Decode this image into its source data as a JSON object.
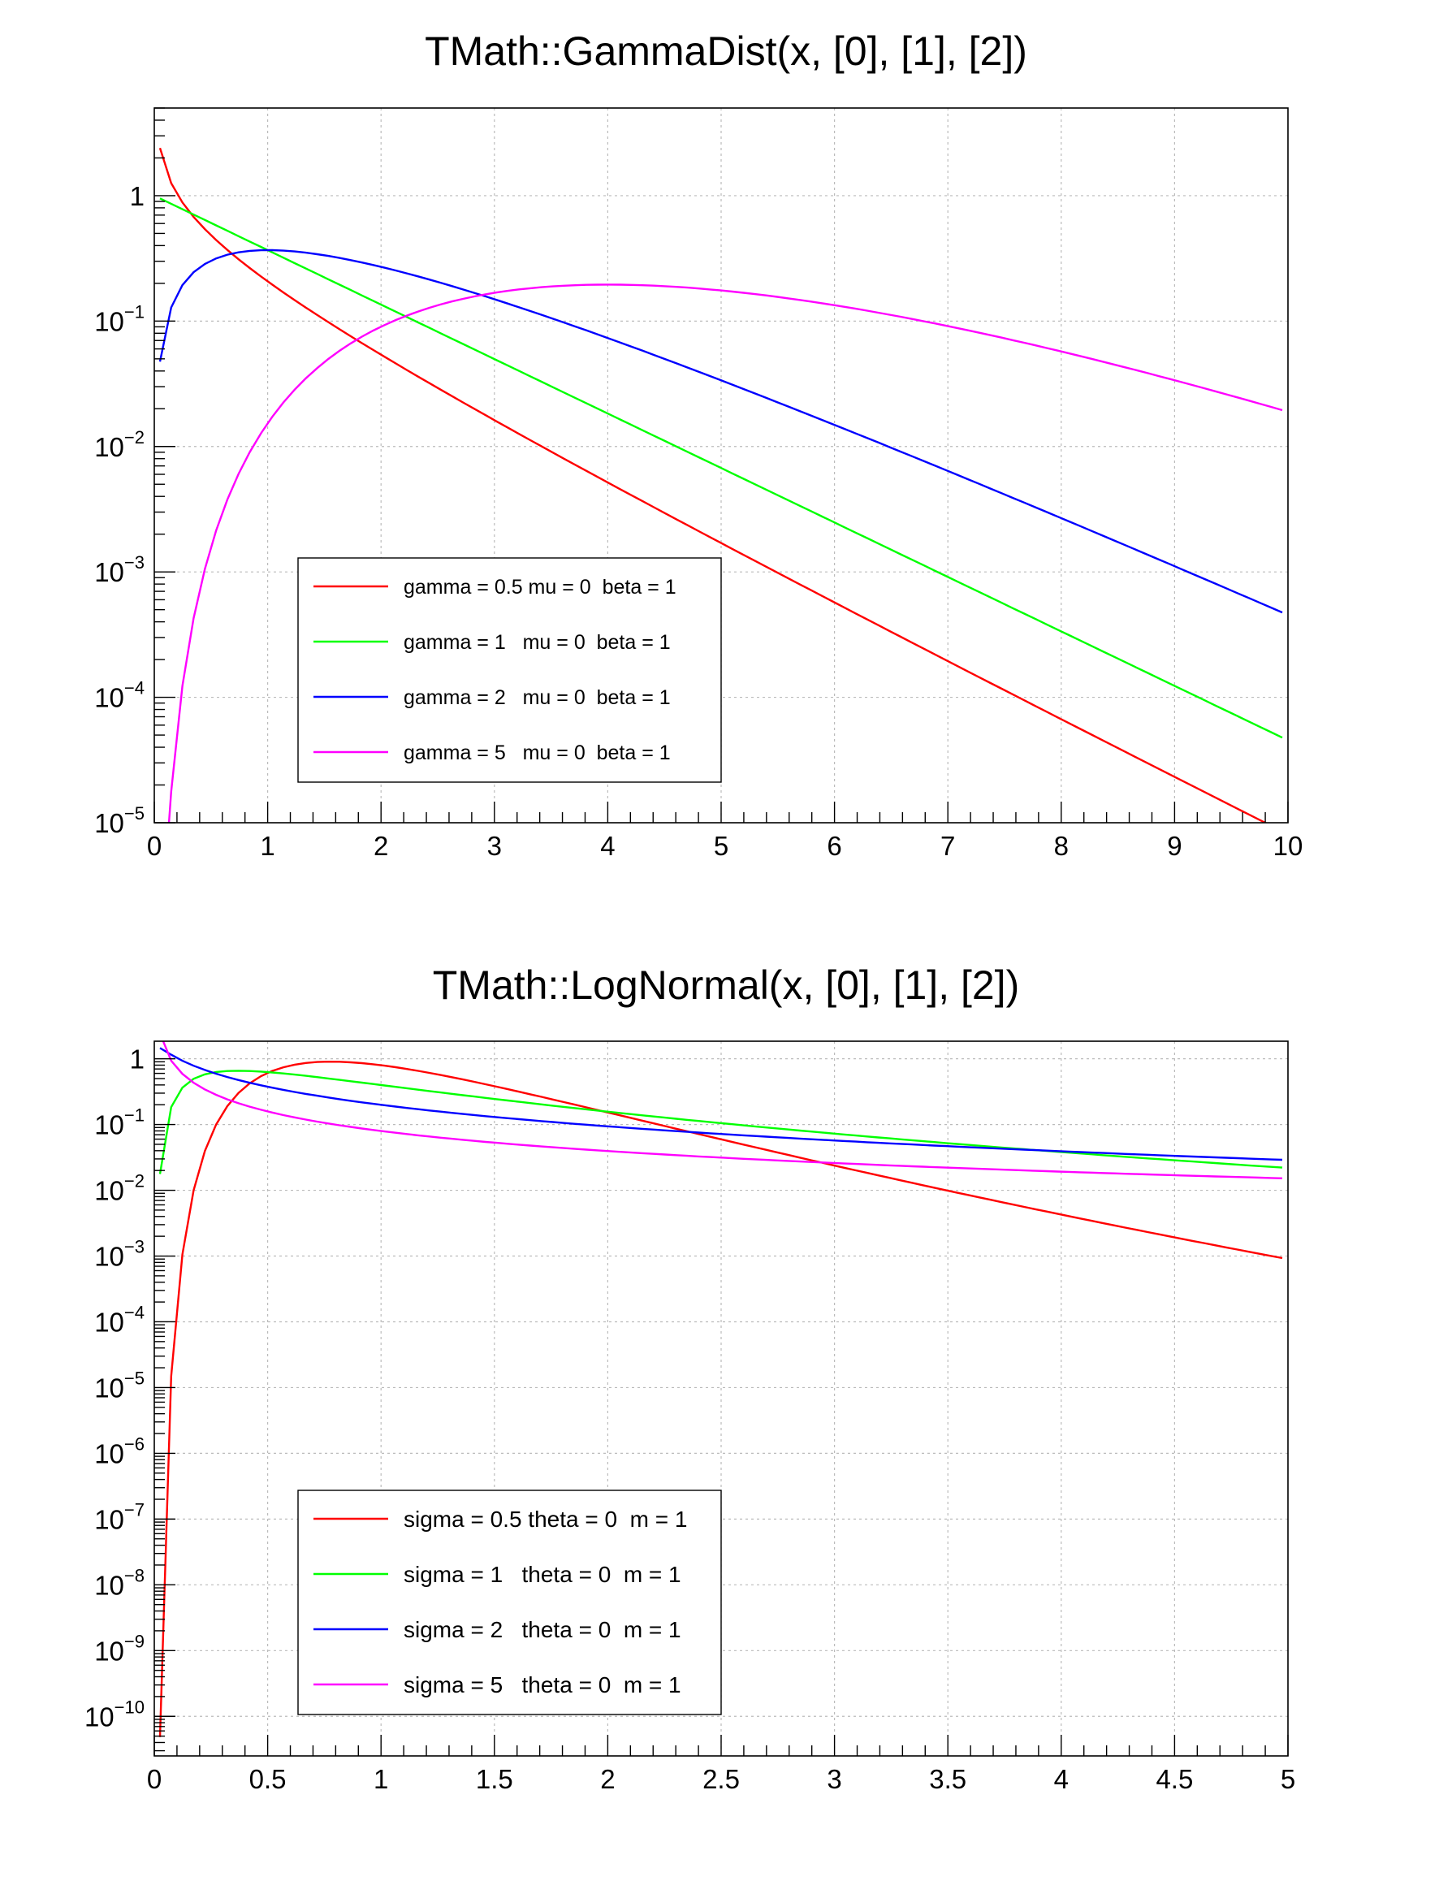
{
  "chart_data": [
    {
      "type": "line",
      "title": "TMath::GammaDist(x, [0], [1], [2])",
      "xlabel": "",
      "ylabel": "",
      "xlim": [
        0,
        10
      ],
      "ylim": [
        1e-05,
        5
      ],
      "yscale": "log",
      "grid": true,
      "legend_position": "bottom-left",
      "x_tick_labels": [
        "0",
        "1",
        "2",
        "3",
        "4",
        "5",
        "6",
        "7",
        "8",
        "9",
        "10"
      ],
      "y_tick_labels": [
        {
          "base": "1",
          "exp": ""
        },
        {
          "base": "10",
          "exp": "−1"
        },
        {
          "base": "10",
          "exp": "−2"
        },
        {
          "base": "10",
          "exp": "−3"
        },
        {
          "base": "10",
          "exp": "−4"
        },
        {
          "base": "10",
          "exp": "−5"
        }
      ],
      "series": [
        {
          "name": "gamma = 0.5 mu = 0  beta = 1",
          "color": "#ff0000",
          "params": {
            "gamma": 0.5,
            "mu": 0,
            "beta": 1
          }
        },
        {
          "name": "gamma = 1   mu = 0  beta = 1",
          "color": "#00ff00",
          "params": {
            "gamma": 1,
            "mu": 0,
            "beta": 1
          }
        },
        {
          "name": "gamma = 2   mu = 0  beta = 1",
          "color": "#0000ff",
          "params": {
            "gamma": 2,
            "mu": 0,
            "beta": 1
          }
        },
        {
          "name": "gamma = 5   mu = 0  beta = 1",
          "color": "#ff00ff",
          "params": {
            "gamma": 5,
            "mu": 0,
            "beta": 1
          }
        }
      ]
    },
    {
      "type": "line",
      "title": "TMath::LogNormal(x, [0], [1], [2])",
      "xlabel": "",
      "ylabel": "",
      "xlim": [
        0,
        5
      ],
      "ylim": [
        2.5e-11,
        1.85
      ],
      "yscale": "log",
      "grid": true,
      "legend_position": "bottom-left",
      "x_tick_labels": [
        "0",
        "0.5",
        "1",
        "1.5",
        "2",
        "2.5",
        "3",
        "3.5",
        "4",
        "4.5",
        "5"
      ],
      "y_tick_labels": [
        {
          "base": "1",
          "exp": ""
        },
        {
          "base": "10",
          "exp": "−1"
        },
        {
          "base": "10",
          "exp": "−2"
        },
        {
          "base": "10",
          "exp": "−3"
        },
        {
          "base": "10",
          "exp": "−4"
        },
        {
          "base": "10",
          "exp": "−5"
        },
        {
          "base": "10",
          "exp": "−6"
        },
        {
          "base": "10",
          "exp": "−7"
        },
        {
          "base": "10",
          "exp": "−8"
        },
        {
          "base": "10",
          "exp": "−9"
        },
        {
          "base": "10",
          "exp": "−10"
        }
      ],
      "series": [
        {
          "name": "sigma = 0.5 theta = 0  m = 1",
          "color": "#ff0000",
          "params": {
            "sigma": 0.5,
            "theta": 0,
            "m": 1
          }
        },
        {
          "name": "sigma = 1   theta = 0  m = 1",
          "color": "#00ff00",
          "params": {
            "sigma": 1,
            "theta": 0,
            "m": 1
          }
        },
        {
          "name": "sigma = 2   theta = 0  m = 1",
          "color": "#0000ff",
          "params": {
            "sigma": 2,
            "theta": 0,
            "m": 1
          }
        },
        {
          "name": "sigma = 5   theta = 0  m = 1",
          "color": "#ff00ff",
          "params": {
            "sigma": 5,
            "theta": 0,
            "m": 1
          }
        }
      ]
    }
  ]
}
